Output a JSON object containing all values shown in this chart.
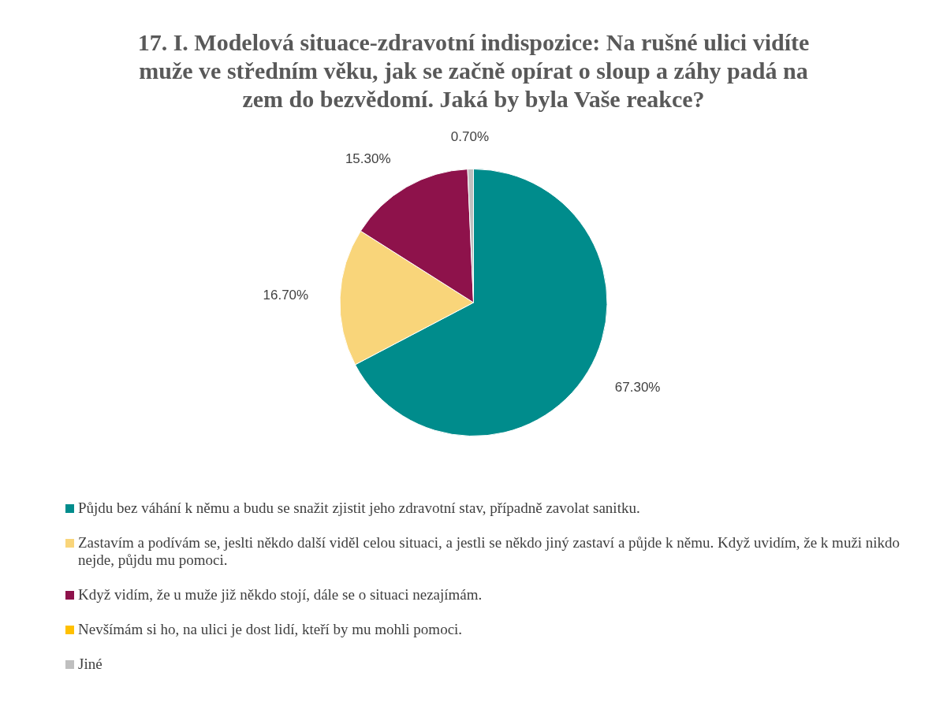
{
  "chart_data": {
    "type": "pie",
    "title": "17. I. Modelová situace-zdravotní indispozice: Na rušné ulici vidíte muže ve středním věku, jak se začně opírat o sloup a záhy padá na zem do bezvědomí. Jaká by byla Vaše reakce?",
    "categories": [
      "Půjdu bez váhání k němu a budu se snažit zjistit jeho zdravotní stav, případně zavolat sanitku.",
      "Zastavím a podívám se, jeslti někdo další viděl celou situaci, a jestli se někdo jiný zastaví a půjde k němu. Když uvidím, že k muži nikdo nejde, půjdu mu pomoci.",
      "Když vidím, že u muže již někdo stojí, dále se o situaci nezajímám.",
      "Nevšímám si ho, na ulici je dost lidí, kteří by mu mohli pomoci.",
      "Jiné"
    ],
    "values": [
      67.3,
      16.7,
      15.3,
      0,
      0.7
    ],
    "value_labels": [
      "67.30%",
      "16.70%",
      "15.30%",
      null,
      "0.70%"
    ],
    "colors": [
      "#008c8c",
      "#f9d57a",
      "#8e124b",
      "#ffc000",
      "#bfbfbf"
    ],
    "legend": "bottom"
  }
}
